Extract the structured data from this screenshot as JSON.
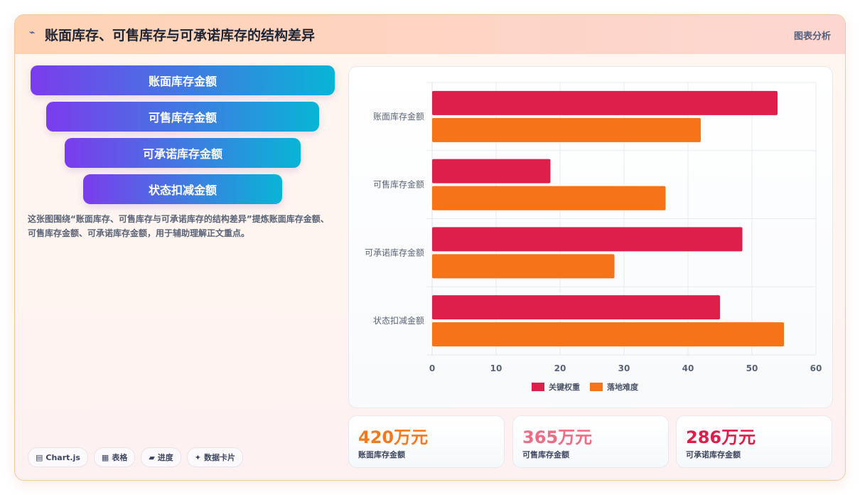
{
  "header": {
    "title": "账面库存、可售库存与可承诺库存的结构差异",
    "tag": "图表分析"
  },
  "funnel": [
    "账面库存金额",
    "可售库存金额",
    "可承诺库存金额",
    "状态扣减金额"
  ],
  "description": "这张图围绕“账面库存、可售库存与可承诺库存的结构差异”提炼账面库存金额、可售库存金额、可承诺库存金额，用于辅助理解正文重点。",
  "chips": [
    {
      "icon": "chart-icon",
      "glyph": "▤",
      "label": "Chart.js"
    },
    {
      "icon": "table-icon",
      "glyph": "▦",
      "label": "表格"
    },
    {
      "icon": "progress-icon",
      "glyph": "▰",
      "label": "进度"
    },
    {
      "icon": "sparkle-icon",
      "glyph": "✦",
      "label": "数据卡片"
    }
  ],
  "chart_data": {
    "type": "bar",
    "orientation": "horizontal",
    "categories": [
      "账面库存金额",
      "可售库存金额",
      "可承诺库存金额",
      "状态扣减金额"
    ],
    "series": [
      {
        "name": "关键权重",
        "color": "#de1f4b",
        "values": [
          54,
          18.5,
          48.5,
          45
        ]
      },
      {
        "name": "落地难度",
        "color": "#f77318",
        "values": [
          42,
          36.5,
          28.5,
          55
        ]
      }
    ],
    "xlim": [
      0,
      60
    ],
    "xticks": [
      "0",
      "10",
      "20",
      "30",
      "40",
      "50",
      "60"
    ],
    "grid": true,
    "legend": "bottom"
  },
  "kpis": [
    {
      "value": "420万元",
      "label": "账面库存金额",
      "color": "#f47a1f"
    },
    {
      "value": "365万元",
      "label": "可售库存金额",
      "color": "#f06b84"
    },
    {
      "value": "286万元",
      "label": "可承诺库存金额",
      "color": "#db1f4a"
    }
  ]
}
